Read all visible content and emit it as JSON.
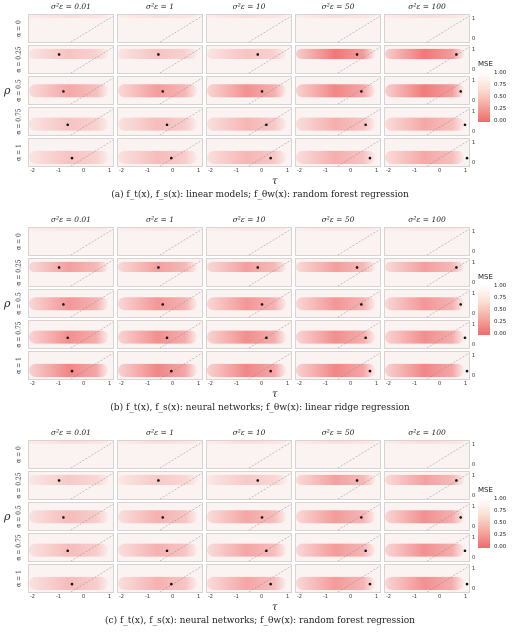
{
  "column_headers": [
    "σ²ε = 0.01",
    "σ²ε = 1",
    "σ²ε = 10",
    "σ²ε = 50",
    "σ²ε = 100"
  ],
  "row_labels": [
    "α = 0",
    "α = 0.25",
    "α = 0.5",
    "α = 0.75",
    "α = 1"
  ],
  "y_axis_label": "ρ",
  "x_axis_label": "τ",
  "x_ticks": [
    "-2",
    "-1",
    "0",
    "1"
  ],
  "y_ticks": [
    "0",
    "1"
  ],
  "legend": {
    "title": "MSE",
    "ticks": [
      "1.00",
      "0.75",
      "0.50",
      "0.25",
      "0.00"
    ]
  },
  "captions": [
    "(a) f_t(x), f_s(x): linear models; f_θw(x): random forest regression",
    "(b) f_t(x), f_s(x): neural networks; f_θw(x): linear ridge regression",
    "(c) f_t(x), f_s(x): neural networks; f_θw(x): random forest regression"
  ],
  "colors": {
    "low": "#ee6a6a",
    "mid": "#f5a9a0",
    "high": "#ffffff"
  }
}
